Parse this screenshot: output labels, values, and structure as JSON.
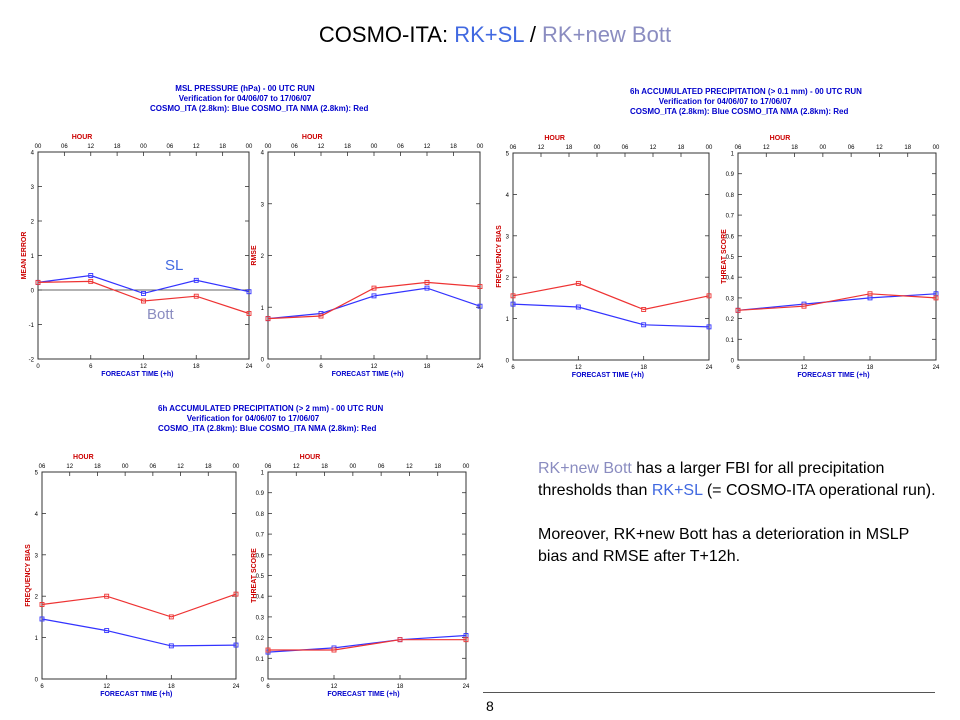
{
  "slide": {
    "title_prefix": "COSMO-ITA: ",
    "title_sl": "RK+SL",
    "title_sep": " / ",
    "title_bott": "RK+new Bott",
    "page_number": "8"
  },
  "series_labels": {
    "sl": "SL",
    "bott": "Bott"
  },
  "headers": [
    {
      "line1": "MSL PRESSURE (hPa) - 00 UTC RUN",
      "line2": "Verification for 04/06/07 to 17/06/07",
      "line3": "COSMO_ITA (2.8km): Blue  COSMO_ITA NMA (2.8km): Red"
    },
    {
      "line1": "6h ACCUMULATED PRECIPITATION (> 0.1 mm) - 00 UTC RUN",
      "line2": "Verification for 04/06/07 to 17/06/07",
      "line3": "COSMO_ITA (2.8km): Blue  COSMO_ITA NMA (2.8km): Red"
    },
    {
      "line1": "6h ACCUMULATED PRECIPITATION (> 2 mm) - 00 UTC RUN",
      "line2": "Verification for 04/06/07 to 17/06/07",
      "line3": "COSMO_ITA (2.8km): Blue  COSMO_ITA NMA (2.8km): Red"
    }
  ],
  "text": {
    "p1_a": "RK+new Bott",
    "p1_b": " has a larger FBI for all precipitation thresholds than ",
    "p1_c": "RK+SL",
    "p1_d": " (= COSMO-ITA operational run).",
    "p2": "Moreover, RK+new Bott has a deterioration in MSLP bias and RMSE after T+12h."
  },
  "colors": {
    "blue": "#3333ff",
    "red": "#ee3333",
    "sl": "#4169e1",
    "bott": "#8a8cc0",
    "axis_label": "#cc0000"
  },
  "chart_data": [
    {
      "type": "line",
      "xlabel": "FORECAST TIME (+h)",
      "ylabel": "MEAN ERROR",
      "top_label": "HOUR",
      "xlim": [
        0,
        24
      ],
      "ylim": [
        -2,
        4
      ],
      "xticks": [
        0,
        6,
        12,
        18,
        24
      ],
      "yticks": [
        -2,
        -1,
        0,
        1,
        2,
        3,
        4
      ],
      "top_ticks": [
        "00",
        "06",
        "12",
        "18",
        "00",
        "06",
        "12",
        "18",
        "00"
      ],
      "zero_line": true,
      "x": [
        0,
        6,
        12,
        18,
        24
      ],
      "series": [
        {
          "name": "COSMO_ITA (2.8km)",
          "color": "blue",
          "values": [
            0.22,
            0.42,
            -0.1,
            0.28,
            -0.05
          ]
        },
        {
          "name": "COSMO_ITA NMA (2.8km)",
          "color": "red",
          "values": [
            0.22,
            0.25,
            -0.32,
            -0.18,
            -0.68
          ]
        }
      ]
    },
    {
      "type": "line",
      "xlabel": "FORECAST TIME (+h)",
      "ylabel": "RMSE",
      "top_label": "HOUR",
      "xlim": [
        0,
        24
      ],
      "ylim": [
        0,
        4
      ],
      "xticks": [
        0,
        6,
        12,
        18,
        24
      ],
      "yticks": [
        0,
        1,
        2,
        3,
        4
      ],
      "top_ticks": [
        "00",
        "06",
        "12",
        "18",
        "00",
        "06",
        "12",
        "18",
        "00"
      ],
      "x": [
        0,
        6,
        12,
        18,
        24
      ],
      "series": [
        {
          "name": "COSMO_ITA (2.8km)",
          "color": "blue",
          "values": [
            0.78,
            0.88,
            1.22,
            1.37,
            1.02
          ]
        },
        {
          "name": "COSMO_ITA NMA (2.8km)",
          "color": "red",
          "values": [
            0.78,
            0.83,
            1.37,
            1.48,
            1.4
          ]
        }
      ]
    },
    {
      "type": "line",
      "xlabel": "FORECAST TIME (+h)",
      "ylabel": "FREQUENCY BIAS",
      "top_label": "HOUR",
      "xlim": [
        6,
        24
      ],
      "ylim": [
        0,
        5
      ],
      "xticks": [
        6,
        12,
        18,
        24
      ],
      "yticks": [
        0,
        1,
        2,
        3,
        4,
        5
      ],
      "top_ticks": [
        "06",
        "12",
        "18",
        "00",
        "06",
        "12",
        "18",
        "00"
      ],
      "x": [
        6,
        12,
        18,
        24
      ],
      "series": [
        {
          "name": "COSMO_ITA (2.8km)",
          "color": "blue",
          "values": [
            1.35,
            1.28,
            0.85,
            0.8
          ]
        },
        {
          "name": "COSMO_ITA NMA (2.8km)",
          "color": "red",
          "values": [
            1.55,
            1.85,
            1.22,
            1.55
          ]
        }
      ]
    },
    {
      "type": "line",
      "xlabel": "FORECAST TIME (+h)",
      "ylabel": "THREAT SCORE",
      "top_label": "HOUR",
      "xlim": [
        6,
        24
      ],
      "ylim": [
        0,
        1
      ],
      "xticks": [
        6,
        12,
        18,
        24
      ],
      "yticks": [
        0,
        0.1,
        0.2,
        0.3,
        0.4,
        0.5,
        0.6,
        0.7,
        0.8,
        0.9,
        1
      ],
      "top_ticks": [
        "06",
        "12",
        "18",
        "00",
        "06",
        "12",
        "18",
        "00"
      ],
      "x": [
        6,
        12,
        18,
        24
      ],
      "series": [
        {
          "name": "COSMO_ITA (2.8km)",
          "color": "blue",
          "values": [
            0.24,
            0.27,
            0.3,
            0.32
          ]
        },
        {
          "name": "COSMO_ITA NMA (2.8km)",
          "color": "red",
          "values": [
            0.24,
            0.26,
            0.32,
            0.3
          ]
        }
      ]
    },
    {
      "type": "line",
      "xlabel": "FORECAST TIME (+h)",
      "ylabel": "FREQUENCY BIAS",
      "top_label": "HOUR",
      "xlim": [
        6,
        24
      ],
      "ylim": [
        0,
        5
      ],
      "xticks": [
        6,
        12,
        18,
        24
      ],
      "yticks": [
        0,
        1,
        2,
        3,
        4,
        5
      ],
      "top_ticks": [
        "06",
        "12",
        "18",
        "00",
        "06",
        "12",
        "18",
        "00"
      ],
      "x": [
        6,
        12,
        18,
        24
      ],
      "series": [
        {
          "name": "COSMO_ITA (2.8km)",
          "color": "blue",
          "values": [
            1.45,
            1.17,
            0.8,
            0.82
          ]
        },
        {
          "name": "COSMO_ITA NMA (2.8km)",
          "color": "red",
          "values": [
            1.8,
            2.0,
            1.5,
            2.05
          ]
        }
      ]
    },
    {
      "type": "line",
      "xlabel": "FORECAST TIME (+h)",
      "ylabel": "THREAT SCORE",
      "top_label": "HOUR",
      "xlim": [
        6,
        24
      ],
      "ylim": [
        0,
        1
      ],
      "xticks": [
        6,
        12,
        18,
        24
      ],
      "yticks": [
        0,
        0.1,
        0.2,
        0.3,
        0.4,
        0.5,
        0.6,
        0.7,
        0.8,
        0.9,
        1
      ],
      "top_ticks": [
        "06",
        "12",
        "18",
        "00",
        "06",
        "12",
        "18",
        "00"
      ],
      "x": [
        6,
        12,
        18,
        24
      ],
      "series": [
        {
          "name": "COSMO_ITA (2.8km)",
          "color": "blue",
          "values": [
            0.13,
            0.15,
            0.19,
            0.21
          ]
        },
        {
          "name": "COSMO_ITA NMA (2.8km)",
          "color": "red",
          "values": [
            0.14,
            0.14,
            0.19,
            0.19
          ]
        }
      ]
    }
  ]
}
